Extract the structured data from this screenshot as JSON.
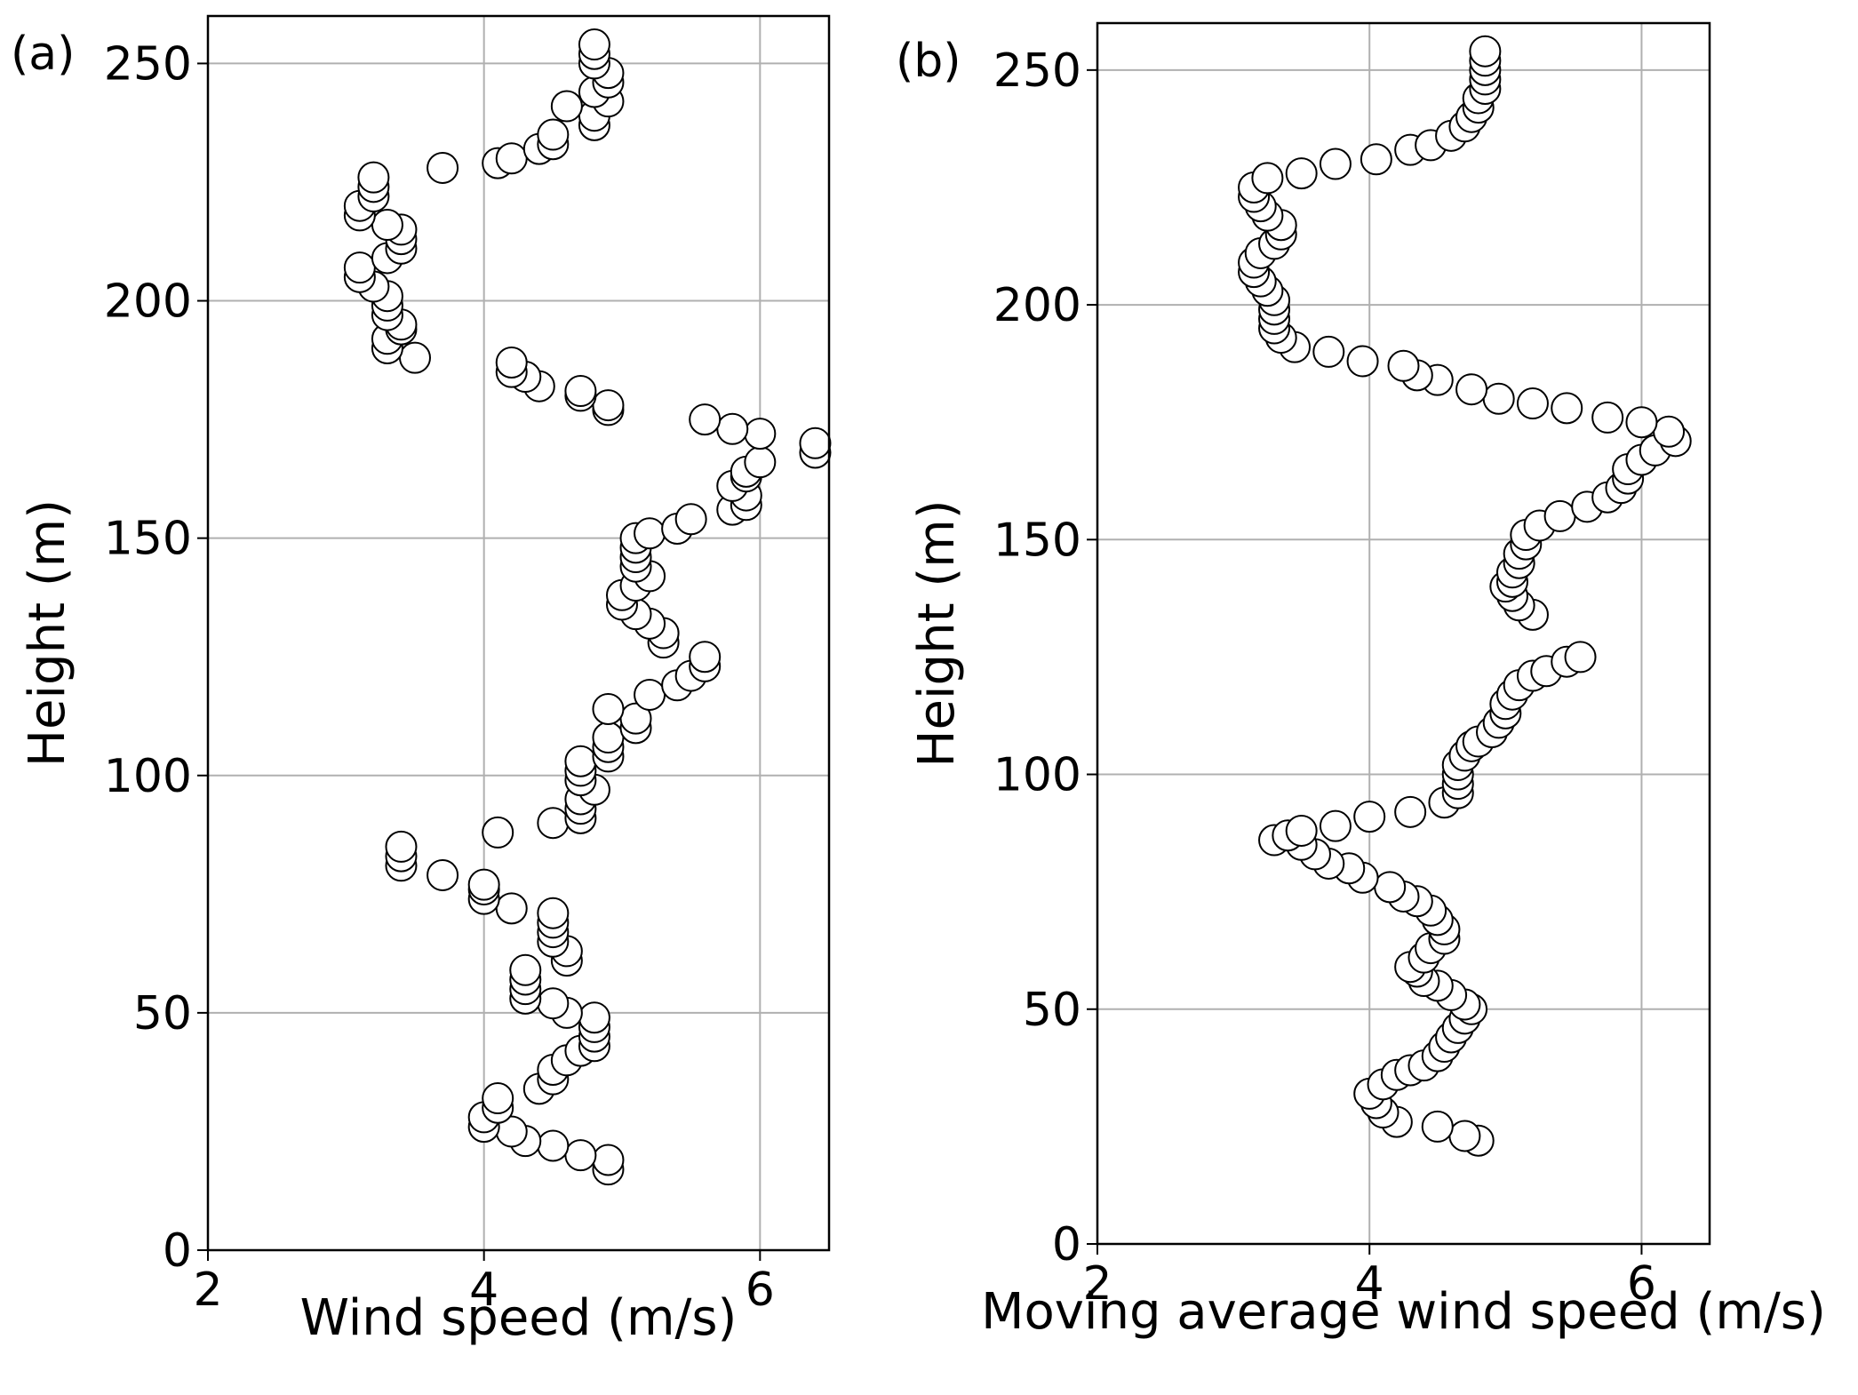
{
  "figure": {
    "background": "#ffffff",
    "marker_fill": "#ffffff",
    "marker_edge": "#000000",
    "grid_color": "#b0b0b0"
  },
  "chart_data": [
    {
      "type": "scatter",
      "panel_label": "(a)",
      "title": "",
      "xlabel": "Wind speed (m/s)",
      "ylabel": "Height (m)",
      "xlim": [
        2,
        6.5
      ],
      "ylim": [
        0,
        260
      ],
      "xticks": [
        2,
        4,
        6
      ],
      "yticks": [
        0,
        50,
        100,
        150,
        200,
        250
      ],
      "grid": true,
      "points": [
        [
          4.9,
          17
        ],
        [
          4.9,
          19
        ],
        [
          4.7,
          20
        ],
        [
          4.5,
          22
        ],
        [
          4.3,
          23
        ],
        [
          4.2,
          25
        ],
        [
          4.0,
          26
        ],
        [
          4.0,
          28
        ],
        [
          4.1,
          30
        ],
        [
          4.1,
          32
        ],
        [
          4.4,
          34
        ],
        [
          4.5,
          36
        ],
        [
          4.5,
          38
        ],
        [
          4.6,
          40
        ],
        [
          4.7,
          42
        ],
        [
          4.8,
          43
        ],
        [
          4.8,
          45
        ],
        [
          4.8,
          47
        ],
        [
          4.8,
          49
        ],
        [
          4.6,
          50
        ],
        [
          4.5,
          52
        ],
        [
          4.3,
          53
        ],
        [
          4.3,
          55
        ],
        [
          4.3,
          57
        ],
        [
          4.3,
          59
        ],
        [
          4.6,
          61
        ],
        [
          4.6,
          63
        ],
        [
          4.5,
          65
        ],
        [
          4.5,
          67
        ],
        [
          4.5,
          69
        ],
        [
          4.5,
          71
        ],
        [
          4.2,
          72
        ],
        [
          4.0,
          74
        ],
        [
          4.0,
          76
        ],
        [
          4.0,
          77
        ],
        [
          3.7,
          79
        ],
        [
          3.4,
          81
        ],
        [
          3.4,
          83
        ],
        [
          3.4,
          85
        ],
        [
          4.1,
          88
        ],
        [
          4.5,
          90
        ],
        [
          4.7,
          91
        ],
        [
          4.7,
          93
        ],
        [
          4.7,
          95
        ],
        [
          4.8,
          97
        ],
        [
          4.7,
          99
        ],
        [
          4.7,
          101
        ],
        [
          4.7,
          103
        ],
        [
          4.9,
          104
        ],
        [
          4.9,
          106
        ],
        [
          4.9,
          108
        ],
        [
          5.1,
          110
        ],
        [
          5.1,
          112
        ],
        [
          4.9,
          114
        ],
        [
          5.2,
          117
        ],
        [
          5.4,
          119
        ],
        [
          5.5,
          121
        ],
        [
          5.6,
          123
        ],
        [
          5.6,
          125
        ],
        [
          5.3,
          128
        ],
        [
          5.3,
          130
        ],
        [
          5.2,
          132
        ],
        [
          5.1,
          134
        ],
        [
          5.0,
          136
        ],
        [
          5.0,
          138
        ],
        [
          5.1,
          140
        ],
        [
          5.2,
          142
        ],
        [
          5.1,
          144
        ],
        [
          5.1,
          146
        ],
        [
          5.1,
          148
        ],
        [
          5.1,
          150
        ],
        [
          5.2,
          151
        ],
        [
          5.4,
          152
        ],
        [
          5.5,
          154
        ],
        [
          5.8,
          156
        ],
        [
          5.9,
          157
        ],
        [
          5.9,
          159
        ],
        [
          5.8,
          161
        ],
        [
          5.9,
          163
        ],
        [
          5.9,
          164
        ],
        [
          6.0,
          166
        ],
        [
          6.4,
          168
        ],
        [
          6.4,
          170
        ],
        [
          6.0,
          172
        ],
        [
          5.8,
          173
        ],
        [
          5.6,
          175
        ],
        [
          4.9,
          177
        ],
        [
          4.9,
          178
        ],
        [
          4.7,
          180
        ],
        [
          4.7,
          181
        ],
        [
          4.4,
          182
        ],
        [
          4.3,
          184
        ],
        [
          4.2,
          185
        ],
        [
          4.2,
          187
        ],
        [
          3.5,
          188
        ],
        [
          3.3,
          190
        ],
        [
          3.3,
          192
        ],
        [
          3.4,
          194
        ],
        [
          3.4,
          195
        ],
        [
          3.3,
          197
        ],
        [
          3.3,
          199
        ],
        [
          3.3,
          201
        ],
        [
          3.2,
          203
        ],
        [
          3.1,
          205
        ],
        [
          3.1,
          207
        ],
        [
          3.3,
          209
        ],
        [
          3.4,
          211
        ],
        [
          3.4,
          213
        ],
        [
          3.4,
          215
        ],
        [
          3.3,
          216
        ],
        [
          3.1,
          218
        ],
        [
          3.1,
          220
        ],
        [
          3.2,
          222
        ],
        [
          3.2,
          224
        ],
        [
          3.2,
          226
        ],
        [
          3.7,
          228
        ],
        [
          4.1,
          229
        ],
        [
          4.2,
          230
        ],
        [
          4.4,
          232
        ],
        [
          4.5,
          233
        ],
        [
          4.5,
          235
        ],
        [
          4.8,
          237
        ],
        [
          4.8,
          239
        ],
        [
          4.6,
          241
        ],
        [
          4.9,
          242
        ],
        [
          4.8,
          244
        ],
        [
          4.9,
          246
        ],
        [
          4.9,
          248
        ],
        [
          4.8,
          250
        ],
        [
          4.8,
          252
        ],
        [
          4.8,
          254
        ]
      ]
    },
    {
      "type": "scatter",
      "panel_label": "(b)",
      "title": "",
      "xlabel": "Moving average wind speed (m/s)",
      "ylabel": "Height (m)",
      "xlim": [
        2,
        6.5
      ],
      "ylim": [
        0,
        260
      ],
      "xticks": [
        2,
        4,
        6
      ],
      "yticks": [
        0,
        50,
        100,
        150,
        200,
        250
      ],
      "grid": true,
      "points": [
        [
          4.8,
          22
        ],
        [
          4.7,
          23
        ],
        [
          4.5,
          25
        ],
        [
          4.2,
          26
        ],
        [
          4.1,
          28
        ],
        [
          4.05,
          30
        ],
        [
          4.0,
          32
        ],
        [
          4.1,
          34
        ],
        [
          4.2,
          36
        ],
        [
          4.3,
          37
        ],
        [
          4.4,
          38
        ],
        [
          4.5,
          40
        ],
        [
          4.55,
          42
        ],
        [
          4.6,
          44
        ],
        [
          4.65,
          46
        ],
        [
          4.7,
          48
        ],
        [
          4.75,
          50
        ],
        [
          4.7,
          51
        ],
        [
          4.6,
          53
        ],
        [
          4.5,
          55
        ],
        [
          4.4,
          56
        ],
        [
          4.35,
          58
        ],
        [
          4.3,
          59
        ],
        [
          4.4,
          61
        ],
        [
          4.45,
          63
        ],
        [
          4.55,
          65
        ],
        [
          4.55,
          67
        ],
        [
          4.5,
          69
        ],
        [
          4.45,
          71
        ],
        [
          4.35,
          73
        ],
        [
          4.25,
          74
        ],
        [
          4.15,
          76
        ],
        [
          3.95,
          78
        ],
        [
          3.85,
          80
        ],
        [
          3.7,
          81
        ],
        [
          3.6,
          83
        ],
        [
          3.5,
          85
        ],
        [
          3.3,
          86
        ],
        [
          3.4,
          87
        ],
        [
          3.5,
          88
        ],
        [
          3.75,
          89
        ],
        [
          4.0,
          91
        ],
        [
          4.3,
          92
        ],
        [
          4.55,
          94
        ],
        [
          4.65,
          96
        ],
        [
          4.65,
          98
        ],
        [
          4.65,
          100
        ],
        [
          4.65,
          102
        ],
        [
          4.7,
          104
        ],
        [
          4.75,
          106
        ],
        [
          4.8,
          107
        ],
        [
          4.9,
          109
        ],
        [
          4.95,
          111
        ],
        [
          5.0,
          113
        ],
        [
          5.0,
          115
        ],
        [
          5.05,
          117
        ],
        [
          5.1,
          119
        ],
        [
          5.2,
          121
        ],
        [
          5.3,
          122
        ],
        [
          5.45,
          124
        ],
        [
          5.55,
          125
        ],
        [
          5.2,
          134
        ],
        [
          5.1,
          136
        ],
        [
          5.05,
          138
        ],
        [
          5.0,
          140
        ],
        [
          5.05,
          141
        ],
        [
          5.05,
          143
        ],
        [
          5.1,
          145
        ],
        [
          5.1,
          147
        ],
        [
          5.15,
          149
        ],
        [
          5.15,
          151
        ],
        [
          5.25,
          153
        ],
        [
          5.4,
          155
        ],
        [
          5.6,
          157
        ],
        [
          5.75,
          159
        ],
        [
          5.85,
          161
        ],
        [
          5.9,
          163
        ],
        [
          5.9,
          165
        ],
        [
          6.0,
          167
        ],
        [
          6.1,
          169
        ],
        [
          6.25,
          171
        ],
        [
          6.2,
          173
        ],
        [
          6.0,
          175
        ],
        [
          5.75,
          176
        ],
        [
          5.45,
          178
        ],
        [
          5.2,
          179
        ],
        [
          4.95,
          180
        ],
        [
          4.75,
          182
        ],
        [
          4.5,
          184
        ],
        [
          4.35,
          185
        ],
        [
          4.25,
          187
        ],
        [
          3.95,
          188
        ],
        [
          3.7,
          190
        ],
        [
          3.45,
          191
        ],
        [
          3.35,
          193
        ],
        [
          3.3,
          195
        ],
        [
          3.3,
          197
        ],
        [
          3.3,
          199
        ],
        [
          3.3,
          201
        ],
        [
          3.25,
          203
        ],
        [
          3.2,
          205
        ],
        [
          3.15,
          207
        ],
        [
          3.15,
          209
        ],
        [
          3.2,
          211
        ],
        [
          3.3,
          213
        ],
        [
          3.35,
          215
        ],
        [
          3.35,
          217
        ],
        [
          3.25,
          219
        ],
        [
          3.2,
          221
        ],
        [
          3.15,
          223
        ],
        [
          3.15,
          225
        ],
        [
          3.25,
          227
        ],
        [
          3.5,
          228
        ],
        [
          3.75,
          230
        ],
        [
          4.05,
          231
        ],
        [
          4.3,
          233
        ],
        [
          4.45,
          234
        ],
        [
          4.6,
          236
        ],
        [
          4.7,
          238
        ],
        [
          4.75,
          240
        ],
        [
          4.8,
          242
        ],
        [
          4.8,
          244
        ],
        [
          4.85,
          246
        ],
        [
          4.85,
          248
        ],
        [
          4.85,
          250
        ],
        [
          4.85,
          252
        ],
        [
          4.85,
          254
        ]
      ]
    }
  ]
}
